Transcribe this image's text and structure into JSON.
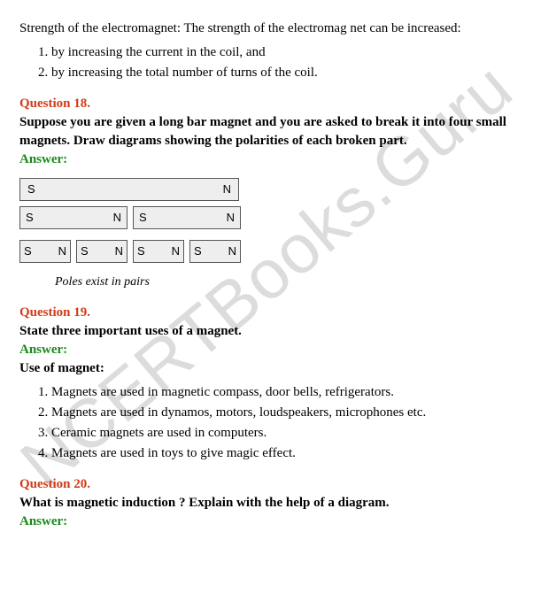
{
  "watermark": "NCERTBooks.Guru",
  "top_para": "Strength of the electromagnet: The strength of the electromag net can be increased:",
  "top_list": [
    "by increasing the current in the coil, and",
    "by increasing the total number of turns of the coil."
  ],
  "q18": {
    "label": "Question 18.",
    "text": "Suppose you are given a long bar magnet and you are asked to break it into four small magnets. Draw diagrams showing the polarities of each broken part.",
    "answer_label": "Answer:",
    "bar_full": {
      "left": "S",
      "right": "N"
    },
    "bar_halves": [
      {
        "left": "S",
        "right": "N"
      },
      {
        "left": "S",
        "right": "N"
      }
    ],
    "bar_quarters": [
      {
        "left": "S",
        "right": "N"
      },
      {
        "left": "S",
        "right": "N"
      },
      {
        "left": "S",
        "right": "N"
      },
      {
        "left": "S",
        "right": "N"
      }
    ],
    "caption": "Poles exist in pairs"
  },
  "q19": {
    "label": "Question 19.",
    "text": "State three important uses of a magnet.",
    "answer_label": "Answer:",
    "sub_heading": "Use of magnet:",
    "items": [
      "Magnets are used in magnetic compass, door bells, refrigerators.",
      "Magnets are used in dynamos, motors, loudspeakers, microphones etc.",
      "Ceramic magnets are used in computers.",
      "Magnets are used in toys to give magic effect."
    ]
  },
  "q20": {
    "label": "Question 20.",
    "text": "What is magnetic induction ? Explain with the help of a diagram.",
    "answer_label": "Answer:"
  }
}
